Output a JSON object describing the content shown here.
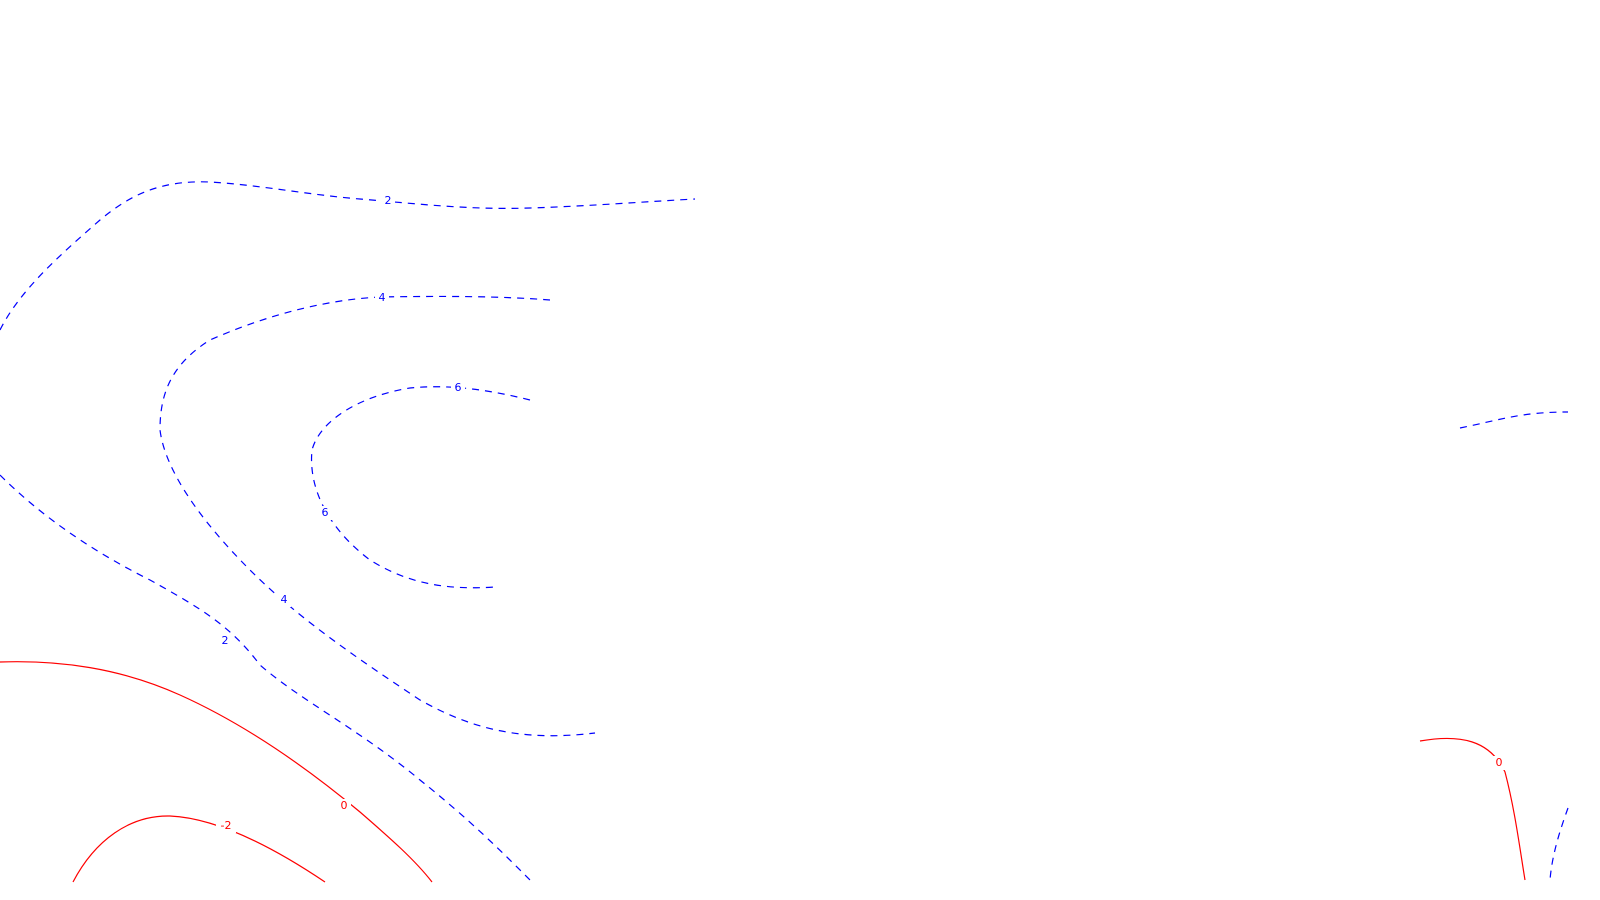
{
  "colors": {
    "positive": "#0000ff",
    "negative": "#ff0000",
    "background": "#ffffff"
  },
  "chart_data": {
    "type": "contour",
    "title": "",
    "xlabel": "",
    "ylabel": "",
    "grid": false,
    "legend": "none",
    "contours": [
      {
        "level": 2,
        "style": "dashed",
        "color": "#0000ff"
      },
      {
        "level": 4,
        "style": "dashed",
        "color": "#0000ff"
      },
      {
        "level": 6,
        "style": "dashed",
        "color": "#0000ff"
      },
      {
        "level": 0,
        "style": "solid",
        "color": "#ff0000"
      },
      {
        "level": -2,
        "style": "solid",
        "color": "#ff0000"
      }
    ],
    "labels": [
      {
        "text": "2",
        "color": "#0000ff"
      },
      {
        "text": "4",
        "color": "#0000ff"
      },
      {
        "text": "6",
        "color": "#0000ff"
      },
      {
        "text": "6",
        "color": "#0000ff"
      },
      {
        "text": "4",
        "color": "#0000ff"
      },
      {
        "text": "2",
        "color": "#0000ff"
      },
      {
        "text": "0",
        "color": "#ff0000"
      },
      {
        "text": "-2",
        "color": "#ff0000"
      },
      {
        "text": "0",
        "color": "#ff0000"
      }
    ]
  }
}
